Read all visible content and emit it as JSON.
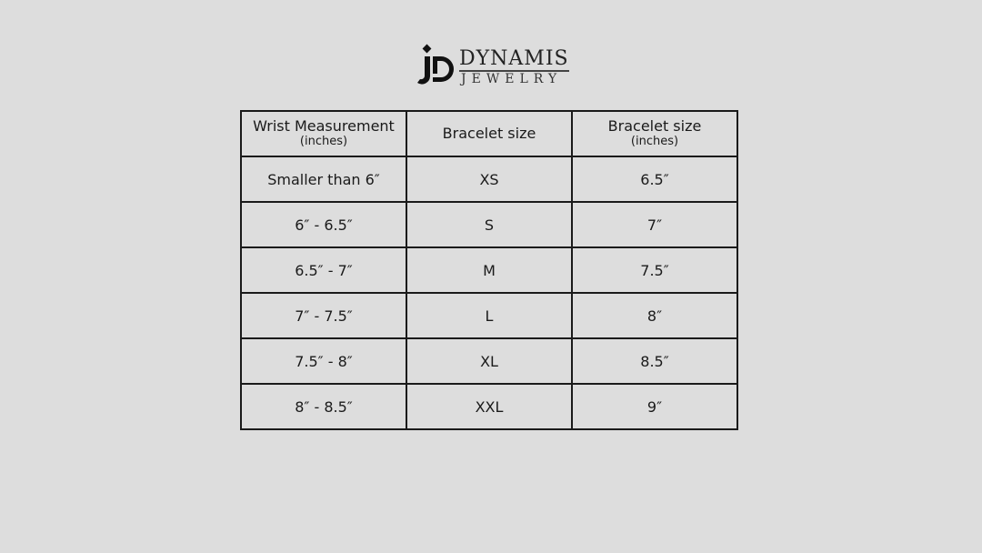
{
  "logo": {
    "brand": "DYNAMIS",
    "sub": "JEWELRY",
    "mark": "JD"
  },
  "table": {
    "headers": [
      {
        "title": "Wrist Measurement",
        "unit": "(inches)"
      },
      {
        "title": "Bracelet size",
        "unit": ""
      },
      {
        "title": "Bracelet size",
        "unit": "(inches)"
      }
    ],
    "rows": [
      [
        "Smaller than 6″",
        "XS",
        "6.5″"
      ],
      [
        "6″ - 6.5″",
        "S",
        "7″"
      ],
      [
        "6.5″ - 7″",
        "M",
        "7.5″"
      ],
      [
        "7″ - 7.5″",
        "L",
        "8″"
      ],
      [
        "7.5″ - 8″",
        "XL",
        "8.5″"
      ],
      [
        "8″ - 8.5″",
        "XXL",
        "9″"
      ]
    ]
  }
}
